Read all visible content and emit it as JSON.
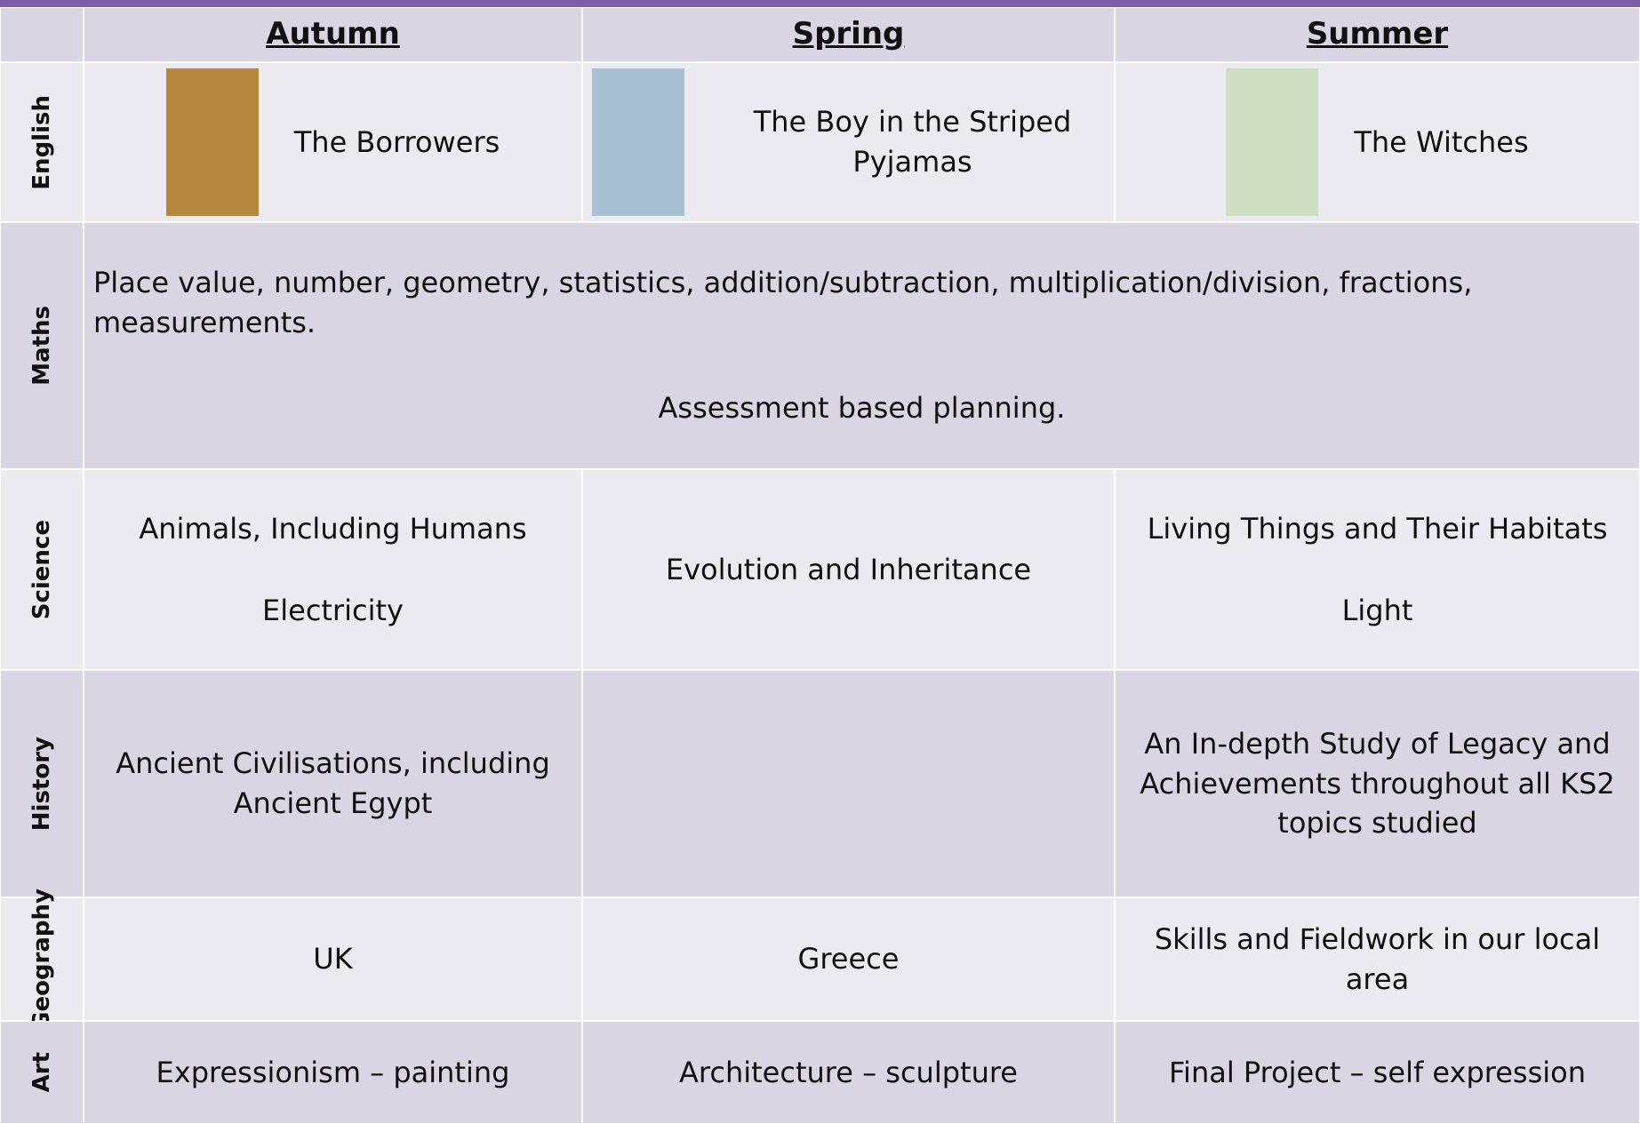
{
  "table": {
    "header": [
      "Autumn",
      "Spring",
      "Summer"
    ],
    "rows": [
      {
        "subject": "English",
        "cells": [
          "The Borrowers",
          "The Boy in the Striped Pyjamas",
          "The Witches"
        ]
      },
      {
        "subject": "Maths",
        "text": [
          "Place value, number, geometry, statistics, addition/subtraction, multiplication/division, fractions, measurements.",
          "Assessment based planning."
        ]
      },
      {
        "subject": "Science",
        "cells": [
          [
            "Animals, Including Humans",
            "Electricity"
          ],
          [
            "Evolution and Inheritance"
          ],
          [
            "Living Things and Their Habitats",
            "Light"
          ]
        ]
      },
      {
        "subject": "History",
        "cells": [
          "Ancient Civilisations, including Ancient Egypt",
          null,
          "An In-depth Study of Legacy and Achievements throughout all KS2 topics studied"
        ]
      },
      {
        "subject": "Geography",
        "cells": [
          "UK",
          "Greece",
          "Skills and Fieldwork in our local area"
        ]
      },
      {
        "subject": "Art",
        "cells": [
          "Expressionism – painting",
          "Architecture – sculpture",
          "Final Project – self expression"
        ]
      }
    ]
  }
}
